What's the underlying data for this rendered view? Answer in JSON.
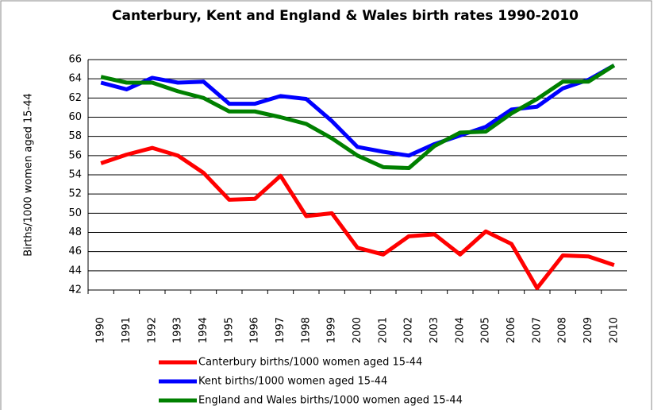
{
  "chart_data": {
    "type": "line",
    "title": "Canterbury, Kent and England & Wales birth rates 1990-2010",
    "y_label": "Births/1000 women aged 15-44",
    "categories": [
      "1990",
      "1991",
      "1992",
      "1993",
      "1994",
      "1995",
      "1996",
      "1997",
      "1998",
      "1999",
      "2000",
      "2001",
      "2002",
      "2003",
      "2004",
      "2005",
      "2006",
      "2007",
      "2008",
      "2009",
      "2010"
    ],
    "series": [
      {
        "name": "Canterbury births/1000 women aged 15-44",
        "color": "#ff0000",
        "values": [
          55.2,
          56.1,
          56.8,
          56.0,
          54.2,
          51.4,
          51.5,
          53.9,
          49.7,
          50.0,
          46.4,
          45.7,
          47.6,
          47.8,
          45.7,
          48.1,
          46.8,
          42.2,
          45.6,
          45.5,
          44.6
        ]
      },
      {
        "name": "Kent births/1000 women aged 15-44",
        "color": "#0000ff",
        "values": [
          63.6,
          62.9,
          64.1,
          63.6,
          63.7,
          61.4,
          61.4,
          62.2,
          61.9,
          59.6,
          56.9,
          56.4,
          56.0,
          57.2,
          58.1,
          59.0,
          60.8,
          61.1,
          63.0,
          63.9,
          65.4
        ]
      },
      {
        "name": "England and Wales births/1000 women aged 15-44",
        "color": "#008000",
        "values": [
          64.2,
          63.6,
          63.6,
          62.7,
          62.0,
          60.6,
          60.6,
          60.0,
          59.3,
          57.8,
          56.0,
          54.8,
          54.7,
          57.0,
          58.4,
          58.5,
          60.4,
          61.9,
          63.7,
          63.7,
          65.4
        ]
      }
    ],
    "ylim": [
      42,
      66
    ],
    "yticks": [
      42,
      44,
      46,
      48,
      50,
      52,
      54,
      56,
      58,
      60,
      62,
      64,
      66
    ],
    "grid": true
  }
}
